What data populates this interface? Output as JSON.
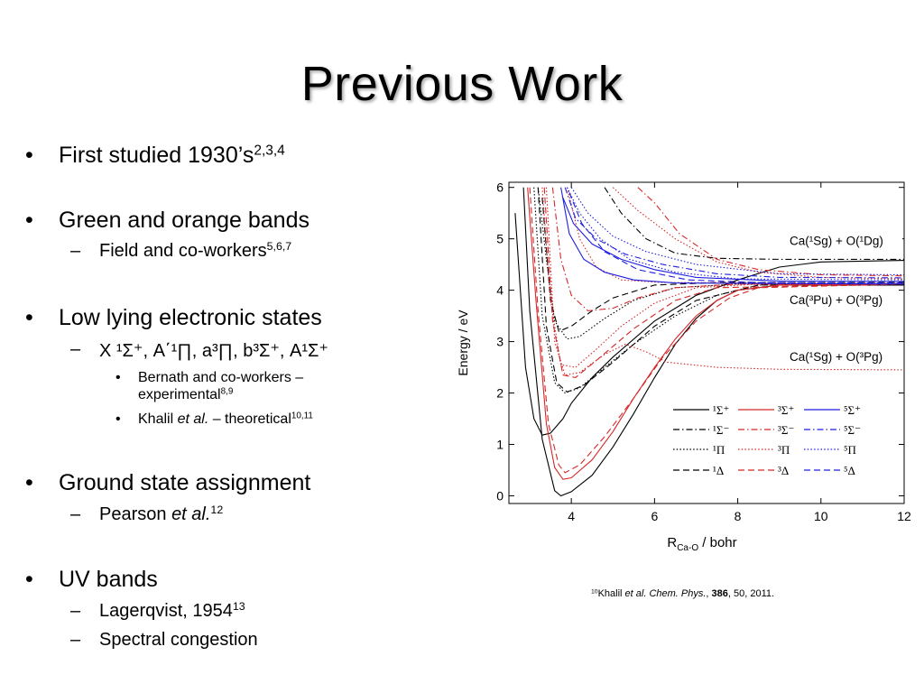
{
  "slide": {
    "title": "Previous Work",
    "bullets": [
      {
        "text": "First studied 1930’s",
        "sup": "2,3,4"
      },
      {
        "text": "Green and orange bands",
        "subs": [
          {
            "text": "Field and co-workers",
            "sup": "5,6,7"
          }
        ]
      },
      {
        "text": "Low lying electronic states",
        "subs": [
          {
            "text": "X ¹Σ⁺, A΄¹∏, a³∏, b³Σ⁺, A¹Σ⁺"
          }
        ],
        "subsubs": [
          {
            "line1": "Bernath and co-workers –",
            "line2": "experimental",
            "sup": "8,9"
          },
          {
            "pre": "Khalil ",
            "em": "et al.",
            "post": " – theoretical",
            "sup": "10,11"
          }
        ]
      },
      {
        "text": "Ground state assignment",
        "subs": [
          {
            "pre": "Pearson ",
            "em": "et al.",
            "sup": "12"
          }
        ]
      },
      {
        "text": "UV bands",
        "subs": [
          {
            "text": "Lagerqvist, 1954",
            "sup": "13"
          },
          {
            "text": "Spectral congestion"
          }
        ]
      }
    ],
    "caption": {
      "sup": "10",
      "pre": "Khalil ",
      "em": "et al. Chem. Phys.",
      "mid": ", ",
      "bold": "386",
      "post": ", 50, 2011."
    }
  },
  "chart_data": {
    "type": "line",
    "xlabel": "R",
    "xlabel_sub": "Ca-O",
    "xlabel_unit": " / bohr",
    "ylabel": "Energy / eV",
    "xlim": [
      2.5,
      12
    ],
    "ylim": [
      -0.15,
      6.1
    ],
    "xticks": [
      4,
      6,
      8,
      10,
      12
    ],
    "yticks": [
      0,
      1,
      2,
      3,
      4,
      5,
      6
    ],
    "grid": false,
    "asymptotes": [
      {
        "label": "Ca(¹Sg) + O(¹Dg)",
        "energy": 4.6
      },
      {
        "label": "Ca(³Pu) + O(³Pg)",
        "energy": 4.12
      },
      {
        "label": "Ca(¹Sg) + O(³Pg)",
        "energy": 2.45
      }
    ],
    "legend": {
      "position": "bottom-right",
      "entries": [
        {
          "label": "¹Σ⁺",
          "color": "#000000",
          "dash": "solid"
        },
        {
          "label": "³Σ⁺",
          "color": "#d62728",
          "dash": "solid"
        },
        {
          "label": "⁵Σ⁺",
          "color": "#1f1fe0",
          "dash": "solid"
        },
        {
          "label": "¹Σ⁻",
          "color": "#000000",
          "dash": "dashdot"
        },
        {
          "label": "³Σ⁻",
          "color": "#d62728",
          "dash": "dashdot"
        },
        {
          "label": "⁵Σ⁻",
          "color": "#1f1fe0",
          "dash": "dashdot"
        },
        {
          "label": "¹Π",
          "color": "#000000",
          "dash": "dotted"
        },
        {
          "label": "³Π",
          "color": "#d62728",
          "dash": "dotted"
        },
        {
          "label": "⁵Π",
          "color": "#1f1fe0",
          "dash": "dotted"
        },
        {
          "label": "¹Δ",
          "color": "#000000",
          "dash": "dashed"
        },
        {
          "label": "³Δ",
          "color": "#d62728",
          "dash": "dashed"
        },
        {
          "label": "⁵Δ",
          "color": "#1f1fe0",
          "dash": "dashed"
        }
      ]
    },
    "series": [
      {
        "color": "#000000",
        "dash": "solid",
        "points": [
          [
            2.85,
            6.0
          ],
          [
            3.0,
            3.6
          ],
          [
            3.3,
            1.1
          ],
          [
            3.6,
            0.1
          ],
          [
            3.75,
            0.0
          ],
          [
            4.0,
            0.08
          ],
          [
            4.5,
            0.4
          ],
          [
            5.0,
            0.95
          ],
          [
            5.5,
            1.6
          ],
          [
            6.0,
            2.3
          ],
          [
            6.5,
            2.95
          ],
          [
            7.0,
            3.45
          ],
          [
            7.5,
            3.8
          ],
          [
            8.0,
            4.0
          ],
          [
            9.0,
            4.1
          ],
          [
            12.0,
            4.1
          ]
        ]
      },
      {
        "color": "#000000",
        "dash": "solid",
        "points": [
          [
            2.65,
            5.5
          ],
          [
            2.9,
            2.5
          ],
          [
            3.1,
            1.5
          ],
          [
            3.3,
            1.18
          ],
          [
            3.5,
            1.22
          ],
          [
            3.8,
            1.5
          ],
          [
            4.0,
            1.8
          ],
          [
            4.5,
            2.3
          ],
          [
            5.0,
            2.7
          ],
          [
            6.0,
            3.4
          ],
          [
            7.0,
            3.9
          ],
          [
            8.0,
            4.2
          ],
          [
            9.0,
            4.45
          ],
          [
            10.0,
            4.55
          ],
          [
            12.0,
            4.58
          ]
        ]
      },
      {
        "color": "#000000",
        "dash": "dashdot",
        "points": [
          [
            4.8,
            6.0
          ],
          [
            5.2,
            5.5
          ],
          [
            5.8,
            5.0
          ],
          [
            6.5,
            4.72
          ],
          [
            7.5,
            4.62
          ],
          [
            9.0,
            4.6
          ],
          [
            12.0,
            4.6
          ]
        ]
      },
      {
        "color": "#000000",
        "dash": "dotted",
        "points": [
          [
            3.2,
            6.0
          ],
          [
            3.4,
            4.6
          ],
          [
            3.6,
            3.4
          ],
          [
            3.9,
            3.05
          ],
          [
            4.2,
            3.1
          ],
          [
            4.8,
            3.45
          ],
          [
            5.5,
            3.8
          ],
          [
            6.5,
            4.05
          ],
          [
            8.0,
            4.12
          ],
          [
            12.0,
            4.12
          ]
        ]
      },
      {
        "color": "#000000",
        "dash": "dashed",
        "points": [
          [
            3.3,
            5.8
          ],
          [
            3.5,
            3.8
          ],
          [
            3.7,
            3.2
          ],
          [
            4.0,
            3.3
          ],
          [
            4.5,
            3.6
          ],
          [
            5.0,
            3.85
          ],
          [
            6.0,
            4.1
          ],
          [
            7.5,
            4.15
          ],
          [
            12.0,
            4.15
          ]
        ]
      },
      {
        "color": "#000000",
        "dash": "dotted",
        "points": [
          [
            3.1,
            6.0
          ],
          [
            3.3,
            3.5
          ],
          [
            3.6,
            2.2
          ],
          [
            3.85,
            2.0
          ],
          [
            4.2,
            2.1
          ],
          [
            4.8,
            2.5
          ],
          [
            5.5,
            2.95
          ],
          [
            6.5,
            3.5
          ],
          [
            7.5,
            3.9
          ],
          [
            8.5,
            4.1
          ],
          [
            12.0,
            4.12
          ]
        ]
      },
      {
        "color": "#000000",
        "dash": "dashed",
        "points": [
          [
            3.2,
            6.0
          ],
          [
            3.4,
            3.3
          ],
          [
            3.65,
            2.2
          ],
          [
            3.9,
            2.02
          ],
          [
            4.3,
            2.15
          ],
          [
            5.0,
            2.6
          ],
          [
            6.0,
            3.3
          ],
          [
            7.0,
            3.8
          ],
          [
            8.5,
            4.1
          ],
          [
            12.0,
            4.12
          ]
        ]
      },
      {
        "color": "#d62728",
        "dash": "solid",
        "points": [
          [
            2.95,
            6.0
          ],
          [
            3.15,
            3.8
          ],
          [
            3.4,
            1.4
          ],
          [
            3.6,
            0.55
          ],
          [
            3.8,
            0.32
          ],
          [
            4.0,
            0.35
          ],
          [
            4.5,
            0.7
          ],
          [
            5.0,
            1.25
          ],
          [
            5.5,
            1.9
          ],
          [
            6.0,
            2.5
          ],
          [
            6.5,
            3.05
          ],
          [
            7.0,
            3.5
          ],
          [
            7.5,
            3.8
          ],
          [
            8.0,
            4.0
          ],
          [
            9.0,
            4.1
          ],
          [
            12.0,
            4.12
          ]
        ]
      },
      {
        "color": "#d62728",
        "dash": "dashed",
        "points": [
          [
            3.0,
            6.0
          ],
          [
            3.2,
            3.6
          ],
          [
            3.45,
            1.4
          ],
          [
            3.7,
            0.6
          ],
          [
            3.85,
            0.45
          ],
          [
            4.2,
            0.6
          ],
          [
            4.8,
            1.15
          ],
          [
            5.5,
            1.9
          ],
          [
            6.2,
            2.7
          ],
          [
            7.0,
            3.4
          ],
          [
            7.8,
            3.85
          ],
          [
            8.5,
            4.05
          ],
          [
            12.0,
            4.12
          ]
        ]
      },
      {
        "color": "#d62728",
        "dash": "dotted",
        "points": [
          [
            3.4,
            6.0
          ],
          [
            3.6,
            3.0
          ],
          [
            3.85,
            2.35
          ],
          [
            4.2,
            2.4
          ],
          [
            4.8,
            2.75
          ],
          [
            5.3,
            2.95
          ],
          [
            5.8,
            2.8
          ],
          [
            6.3,
            2.6
          ],
          [
            7.5,
            2.5
          ],
          [
            9.0,
            2.46
          ],
          [
            12.0,
            2.45
          ]
        ]
      },
      {
        "color": "#d62728",
        "dash": "dotted",
        "points": [
          [
            3.3,
            6.0
          ],
          [
            3.5,
            3.8
          ],
          [
            3.75,
            2.55
          ],
          [
            4.1,
            2.5
          ],
          [
            4.6,
            2.85
          ],
          [
            5.2,
            3.3
          ],
          [
            6.0,
            3.75
          ],
          [
            7.0,
            4.05
          ],
          [
            8.5,
            4.12
          ],
          [
            12.0,
            4.12
          ]
        ]
      },
      {
        "color": "#d62728",
        "dash": "dashed",
        "points": [
          [
            3.35,
            6.0
          ],
          [
            3.55,
            3.4
          ],
          [
            3.8,
            2.35
          ],
          [
            4.1,
            2.3
          ],
          [
            4.7,
            2.7
          ],
          [
            5.5,
            3.25
          ],
          [
            6.5,
            3.8
          ],
          [
            7.5,
            4.05
          ],
          [
            12.0,
            4.12
          ]
        ]
      },
      {
        "color": "#d62728",
        "dash": "dashdot",
        "points": [
          [
            3.55,
            6.0
          ],
          [
            3.75,
            4.6
          ],
          [
            4.0,
            3.9
          ],
          [
            4.4,
            3.6
          ],
          [
            5.0,
            3.65
          ],
          [
            5.6,
            3.85
          ],
          [
            6.5,
            4.05
          ],
          [
            8.0,
            4.12
          ],
          [
            12.0,
            4.12
          ]
        ]
      },
      {
        "color": "#d62728",
        "dash": "dotted",
        "points": [
          [
            3.9,
            6.0
          ],
          [
            4.2,
            5.0
          ],
          [
            4.6,
            4.45
          ],
          [
            5.2,
            4.2
          ],
          [
            6.2,
            4.15
          ],
          [
            12.0,
            4.13
          ]
        ]
      },
      {
        "color": "#d62728",
        "dash": "dashdot",
        "points": [
          [
            5.6,
            6.0
          ],
          [
            6.0,
            5.7
          ],
          [
            6.6,
            5.1
          ],
          [
            7.5,
            4.6
          ],
          [
            8.5,
            4.4
          ],
          [
            10.0,
            4.3
          ],
          [
            12.0,
            4.28
          ]
        ]
      },
      {
        "color": "#d62728",
        "dash": "dotted",
        "points": [
          [
            5.0,
            6.0
          ],
          [
            5.6,
            5.55
          ],
          [
            6.5,
            5.0
          ],
          [
            7.5,
            4.55
          ],
          [
            8.5,
            4.35
          ],
          [
            10.0,
            4.25
          ],
          [
            12.0,
            4.22
          ]
        ]
      },
      {
        "color": "#1f1fe0",
        "dash": "solid",
        "points": [
          [
            3.75,
            6.0
          ],
          [
            3.95,
            5.1
          ],
          [
            4.3,
            4.6
          ],
          [
            4.8,
            4.35
          ],
          [
            5.5,
            4.2
          ],
          [
            6.5,
            4.14
          ],
          [
            12.0,
            4.12
          ]
        ]
      },
      {
        "color": "#1f1fe0",
        "dash": "solid",
        "points": [
          [
            3.8,
            5.8
          ],
          [
            4.05,
            5.3
          ],
          [
            4.5,
            4.9
          ],
          [
            5.2,
            4.6
          ],
          [
            6.0,
            4.4
          ],
          [
            7.0,
            4.25
          ],
          [
            9.0,
            4.18
          ],
          [
            12.0,
            4.17
          ]
        ]
      },
      {
        "color": "#1f1fe0",
        "dash": "dashdot",
        "points": [
          [
            3.85,
            6.0
          ],
          [
            4.1,
            5.4
          ],
          [
            4.6,
            5.0
          ],
          [
            5.3,
            4.7
          ],
          [
            6.2,
            4.5
          ],
          [
            7.5,
            4.32
          ],
          [
            9.0,
            4.25
          ],
          [
            12.0,
            4.24
          ]
        ]
      },
      {
        "color": "#1f1fe0",
        "dash": "dotted",
        "points": [
          [
            3.9,
            6.0
          ],
          [
            4.2,
            5.5
          ],
          [
            4.7,
            5.0
          ],
          [
            5.4,
            4.6
          ],
          [
            6.5,
            4.35
          ],
          [
            8.0,
            4.22
          ],
          [
            12.0,
            4.2
          ]
        ]
      },
      {
        "color": "#1f1fe0",
        "dash": "dashed",
        "points": [
          [
            3.95,
            5.9
          ],
          [
            4.25,
            5.3
          ],
          [
            4.8,
            4.75
          ],
          [
            5.6,
            4.4
          ],
          [
            6.8,
            4.2
          ],
          [
            8.5,
            4.15
          ],
          [
            12.0,
            4.14
          ]
        ]
      },
      {
        "color": "#1f1fe0",
        "dash": "dotted",
        "points": [
          [
            4.0,
            6.0
          ],
          [
            4.4,
            5.5
          ],
          [
            5.0,
            5.05
          ],
          [
            5.8,
            4.75
          ],
          [
            7.0,
            4.5
          ],
          [
            9.0,
            4.32
          ],
          [
            12.0,
            4.3
          ]
        ]
      }
    ]
  }
}
